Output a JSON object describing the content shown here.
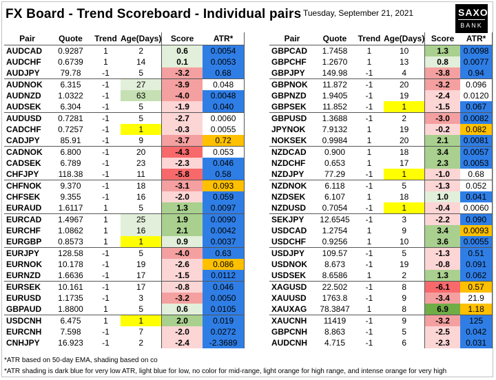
{
  "title": "FX Board - Trend Scoreboard - Individual pairs",
  "date": "Tuesday, September 21, 2021",
  "logo": {
    "line1": "SAXO",
    "line2": "BANK"
  },
  "headers": [
    "Pair",
    "Quote",
    "Trend",
    "Age(Days)",
    "Score",
    "ATR*"
  ],
  "colors": {
    "age_yellow": "#ffff00",
    "age_green_light": "#e2efda",
    "age_green_mid": "#c6e0b4",
    "score_green_strong": "#70ad47",
    "score_green": "#a9d08e",
    "score_green_light": "#e2efda",
    "score_red_strong": "#f8696b",
    "score_red": "#f4a0a0",
    "score_red_light": "#fcd5d5",
    "atr_dark_blue": "#2f7ee6",
    "atr_light_blue": "#5b9bd5",
    "atr_light_orange": "#ffc000",
    "atr_orange": "#f4a742"
  },
  "left_table": [
    {
      "pair": "AUDCAD",
      "quote": "0.9287",
      "trend": "1",
      "age": "2",
      "score": "0.6",
      "atr": "0.0054",
      "sc": "g1",
      "ac": "db"
    },
    {
      "pair": "AUDCHF",
      "quote": "0.6739",
      "trend": "1",
      "age": "14",
      "score": "0.1",
      "atr": "0.0053",
      "sc": "g1",
      "ac": "db"
    },
    {
      "pair": "AUDJPY",
      "quote": "79.78",
      "trend": "-1",
      "age": "5",
      "score": "-3.2",
      "atr": "0.68",
      "sc": "r2",
      "ac": "db"
    },
    {
      "pair": "AUDNOK",
      "quote": "6.315",
      "trend": "-1",
      "age": "27",
      "score": "-3.9",
      "atr": "0.048",
      "sc": "r2",
      "ac": "",
      "agc": "ag1",
      "sep": true
    },
    {
      "pair": "AUDNZD",
      "quote": "1.0322",
      "trend": "-1",
      "age": "63",
      "score": "-4.0",
      "atr": "0.0048",
      "sc": "r2",
      "ac": "db",
      "agc": "ag2"
    },
    {
      "pair": "AUDSEK",
      "quote": "6.304",
      "trend": "-1",
      "age": "5",
      "score": "-1.9",
      "atr": "0.040",
      "sc": "r1",
      "ac": "db"
    },
    {
      "pair": "AUDUSD",
      "quote": "0.7281",
      "trend": "-1",
      "age": "5",
      "score": "-2.7",
      "atr": "0.0060",
      "sc": "r1",
      "ac": "",
      "sep": true
    },
    {
      "pair": "CADCHF",
      "quote": "0.7257",
      "trend": "-1",
      "age": "1",
      "score": "-0.3",
      "atr": "0.0055",
      "sc": "r0",
      "ac": "",
      "agc": "ay"
    },
    {
      "pair": "CADJPY",
      "quote": "85.91",
      "trend": "-1",
      "age": "9",
      "score": "-3.7",
      "atr": "0.72",
      "sc": "r2",
      "ac": "lo"
    },
    {
      "pair": "CADNOK",
      "quote": "6.800",
      "trend": "-1",
      "age": "20",
      "score": "-4.3",
      "atr": "0.053",
      "sc": "r3",
      "ac": "",
      "sep": true
    },
    {
      "pair": "CADSEK",
      "quote": "6.789",
      "trend": "-1",
      "age": "23",
      "score": "-2.3",
      "atr": "0.046",
      "sc": "r1",
      "ac": "db"
    },
    {
      "pair": "CHFJPY",
      "quote": "118.38",
      "trend": "-1",
      "age": "11",
      "score": "-5.8",
      "atr": "0.58",
      "sc": "r3",
      "ac": "db"
    },
    {
      "pair": "CHFNOK",
      "quote": "9.370",
      "trend": "-1",
      "age": "18",
      "score": "-3.1",
      "atr": "0.093",
      "sc": "r2",
      "ac": "lo",
      "sep": true
    },
    {
      "pair": "CHFSEK",
      "quote": "9.355",
      "trend": "-1",
      "age": "16",
      "score": "-2.0",
      "atr": "0.059",
      "sc": "r1",
      "ac": "db"
    },
    {
      "pair": "EURAUD",
      "quote": "1.6117",
      "trend": "1",
      "age": "5",
      "score": "1.3",
      "atr": "0.0097",
      "sc": "g2",
      "ac": "db"
    },
    {
      "pair": "EURCAD",
      "quote": "1.4967",
      "trend": "1",
      "age": "25",
      "score": "1.9",
      "atr": "0.0090",
      "sc": "g2",
      "ac": "db",
      "agc": "ag1",
      "sep": true
    },
    {
      "pair": "EURCHF",
      "quote": "1.0862",
      "trend": "1",
      "age": "16",
      "score": "2.1",
      "atr": "0.0042",
      "sc": "g2",
      "ac": "db",
      "agc": "ag1"
    },
    {
      "pair": "EURGBP",
      "quote": "0.8573",
      "trend": "1",
      "age": "1",
      "score": "0.9",
      "atr": "0.0037",
      "sc": "g1",
      "ac": "db",
      "agc": "ay"
    },
    {
      "pair": "EURJPY",
      "quote": "128.58",
      "trend": "-1",
      "age": "5",
      "score": "-4.0",
      "atr": "0.63",
      "sc": "r2",
      "ac": "db",
      "sep": true
    },
    {
      "pair": "EURNOK",
      "quote": "10.178",
      "trend": "-1",
      "age": "19",
      "score": "-2.6",
      "atr": "0.086",
      "sc": "r1",
      "ac": "lo"
    },
    {
      "pair": "EURNZD",
      "quote": "1.6636",
      "trend": "-1",
      "age": "17",
      "score": "-1.5",
      "atr": "0.0112",
      "sc": "r1",
      "ac": "db"
    },
    {
      "pair": "EURSEK",
      "quote": "10.161",
      "trend": "-1",
      "age": "17",
      "score": "-0.8",
      "atr": "0.046",
      "sc": "r0",
      "ac": "db",
      "sep": true
    },
    {
      "pair": "EURUSD",
      "quote": "1.1735",
      "trend": "-1",
      "age": "3",
      "score": "-3.2",
      "atr": "0.0050",
      "sc": "r2",
      "ac": "db"
    },
    {
      "pair": "GBPAUD",
      "quote": "1.8800",
      "trend": "1",
      "age": "5",
      "score": "0.6",
      "atr": "0.0105",
      "sc": "g1",
      "ac": "db"
    },
    {
      "pair": "USDCNH",
      "quote": "6.475",
      "trend": "1",
      "age": "1",
      "score": "2.0",
      "atr": "0.019",
      "sc": "g2",
      "ac": "db",
      "agc": "ay",
      "sep": true
    },
    {
      "pair": "EURCNH",
      "quote": "7.598",
      "trend": "-1",
      "age": "7",
      "score": "-2.0",
      "atr": "0.0272",
      "sc": "r1",
      "ac": "db"
    },
    {
      "pair": "CNHJPY",
      "quote": "16.923",
      "trend": "-1",
      "age": "2",
      "score": "-2.4",
      "atr": "-2.3689",
      "sc": "r1",
      "ac": "db"
    }
  ],
  "right_table": [
    {
      "pair": "GBPCAD",
      "quote": "1.7458",
      "trend": "1",
      "age": "10",
      "score": "1.3",
      "atr": "0.0098",
      "sc": "g2",
      "ac": "db"
    },
    {
      "pair": "GBPCHF",
      "quote": "1.2670",
      "trend": "1",
      "age": "13",
      "score": "0.8",
      "atr": "0.0077",
      "sc": "g1",
      "ac": "db"
    },
    {
      "pair": "GBPJPY",
      "quote": "149.98",
      "trend": "-1",
      "age": "4",
      "score": "-3.8",
      "atr": "0.94",
      "sc": "r2",
      "ac": "db"
    },
    {
      "pair": "GBPNOK",
      "quote": "11.872",
      "trend": "-1",
      "age": "20",
      "score": "-3.2",
      "atr": "0.096",
      "sc": "r2",
      "ac": "",
      "sep": true
    },
    {
      "pair": "GBPNZD",
      "quote": "1.9405",
      "trend": "-1",
      "age": "19",
      "score": "-2.4",
      "atr": "0.0120",
      "sc": "r1",
      "ac": ""
    },
    {
      "pair": "GBPSEK",
      "quote": "11.852",
      "trend": "-1",
      "age": "1",
      "score": "-1.5",
      "atr": "0.067",
      "sc": "r1",
      "ac": "db",
      "agc": "ay"
    },
    {
      "pair": "GBPUSD",
      "quote": "1.3688",
      "trend": "-1",
      "age": "2",
      "score": "-3.0",
      "atr": "0.0082",
      "sc": "r2",
      "ac": "db",
      "sep": true
    },
    {
      "pair": "JPYNOK",
      "quote": "7.9132",
      "trend": "1",
      "age": "19",
      "score": "-0.2",
      "atr": "0.082",
      "sc": "r0",
      "ac": "lo"
    },
    {
      "pair": "NOKSEK",
      "quote": "0.9984",
      "trend": "1",
      "age": "20",
      "score": "2.1",
      "atr": "0.0081",
      "sc": "g2",
      "ac": "db"
    },
    {
      "pair": "NZDCAD",
      "quote": "0.900",
      "trend": "1",
      "age": "18",
      "score": "3.4",
      "atr": "0.0057",
      "sc": "g3",
      "ac": "db",
      "sep": true
    },
    {
      "pair": "NZDCHF",
      "quote": "0.653",
      "trend": "1",
      "age": "17",
      "score": "2.3",
      "atr": "0.0053",
      "sc": "g2",
      "ac": "db"
    },
    {
      "pair": "NZDJPY",
      "quote": "77.29",
      "trend": "-1",
      "age": "1",
      "score": "-1.0",
      "atr": "0.68",
      "sc": "r0",
      "ac": "",
      "agc": "ay"
    },
    {
      "pair": "NZDNOK",
      "quote": "6.118",
      "trend": "-1",
      "age": "5",
      "score": "-1.3",
      "atr": "0.052",
      "sc": "r0",
      "ac": "",
      "sep": true
    },
    {
      "pair": "NZDSEK",
      "quote": "6.107",
      "trend": "1",
      "age": "18",
      "score": "1.0",
      "atr": "0.041",
      "sc": "g1",
      "ac": "db"
    },
    {
      "pair": "NZDUSD",
      "quote": "0.7054",
      "trend": "-1",
      "age": "1",
      "score": "-0.4",
      "atr": "0.0060",
      "sc": "r0",
      "ac": "",
      "agc": "ay"
    },
    {
      "pair": "SEKJPY",
      "quote": "12.6545",
      "trend": "-1",
      "age": "3",
      "score": "-2.2",
      "atr": "0.090",
      "sc": "r1",
      "ac": "db",
      "sep": true
    },
    {
      "pair": "USDCAD",
      "quote": "1.2754",
      "trend": "1",
      "age": "9",
      "score": "3.4",
      "atr": "0.0093",
      "sc": "g3",
      "ac": "lo"
    },
    {
      "pair": "USDCHF",
      "quote": "0.9256",
      "trend": "1",
      "age": "10",
      "score": "3.6",
      "atr": "0.0055",
      "sc": "g3",
      "ac": "db"
    },
    {
      "pair": "USDJPY",
      "quote": "109.57",
      "trend": "-1",
      "age": "5",
      "score": "-1.3",
      "atr": "0.51",
      "sc": "r0",
      "ac": "db",
      "sep": true
    },
    {
      "pair": "USDNOK",
      "quote": "8.673",
      "trend": "-1",
      "age": "19",
      "score": "-0.8",
      "atr": "0.091",
      "sc": "r0",
      "ac": "db"
    },
    {
      "pair": "USDSEK",
      "quote": "8.6586",
      "trend": "1",
      "age": "2",
      "score": "1.3",
      "atr": "0.062",
      "sc": "g2",
      "ac": "db"
    },
    {
      "pair": "XAGUSD",
      "quote": "22.502",
      "trend": "-1",
      "age": "8",
      "score": "-6.1",
      "atr": "0.57",
      "sc": "r3",
      "ac": "lo",
      "sep": true
    },
    {
      "pair": "XAUUSD",
      "quote": "1763.8",
      "trend": "-1",
      "age": "9",
      "score": "-3.4",
      "atr": "21.9",
      "sc": "r2",
      "ac": ""
    },
    {
      "pair": "XAUXAG",
      "quote": "78.3847",
      "trend": "1",
      "age": "8",
      "score": "6.9",
      "atr": "1.18",
      "sc": "g4",
      "ac": "lo"
    },
    {
      "pair": "XAUCNH",
      "quote": "11419",
      "trend": "-1",
      "age": "9",
      "score": "-3.2",
      "atr": "125",
      "sc": "r2",
      "ac": "db",
      "sep": true
    },
    {
      "pair": "GBPCNH",
      "quote": "8.863",
      "trend": "-1",
      "age": "5",
      "score": "-2.5",
      "atr": "0.042",
      "sc": "r1",
      "ac": "db"
    },
    {
      "pair": "AUDCNH",
      "quote": "4.715",
      "trend": "-1",
      "age": "6",
      "score": "-2.3",
      "atr": "0.031",
      "sc": "r1",
      "ac": "db"
    }
  ],
  "notes": [
    "*ATR based on 50-day EMA, shading based on co",
    "*ATR shading is dark blue for very low ATR, light blue for low, no color for mid-range, light orange for high range, and intense orange for very high"
  ]
}
